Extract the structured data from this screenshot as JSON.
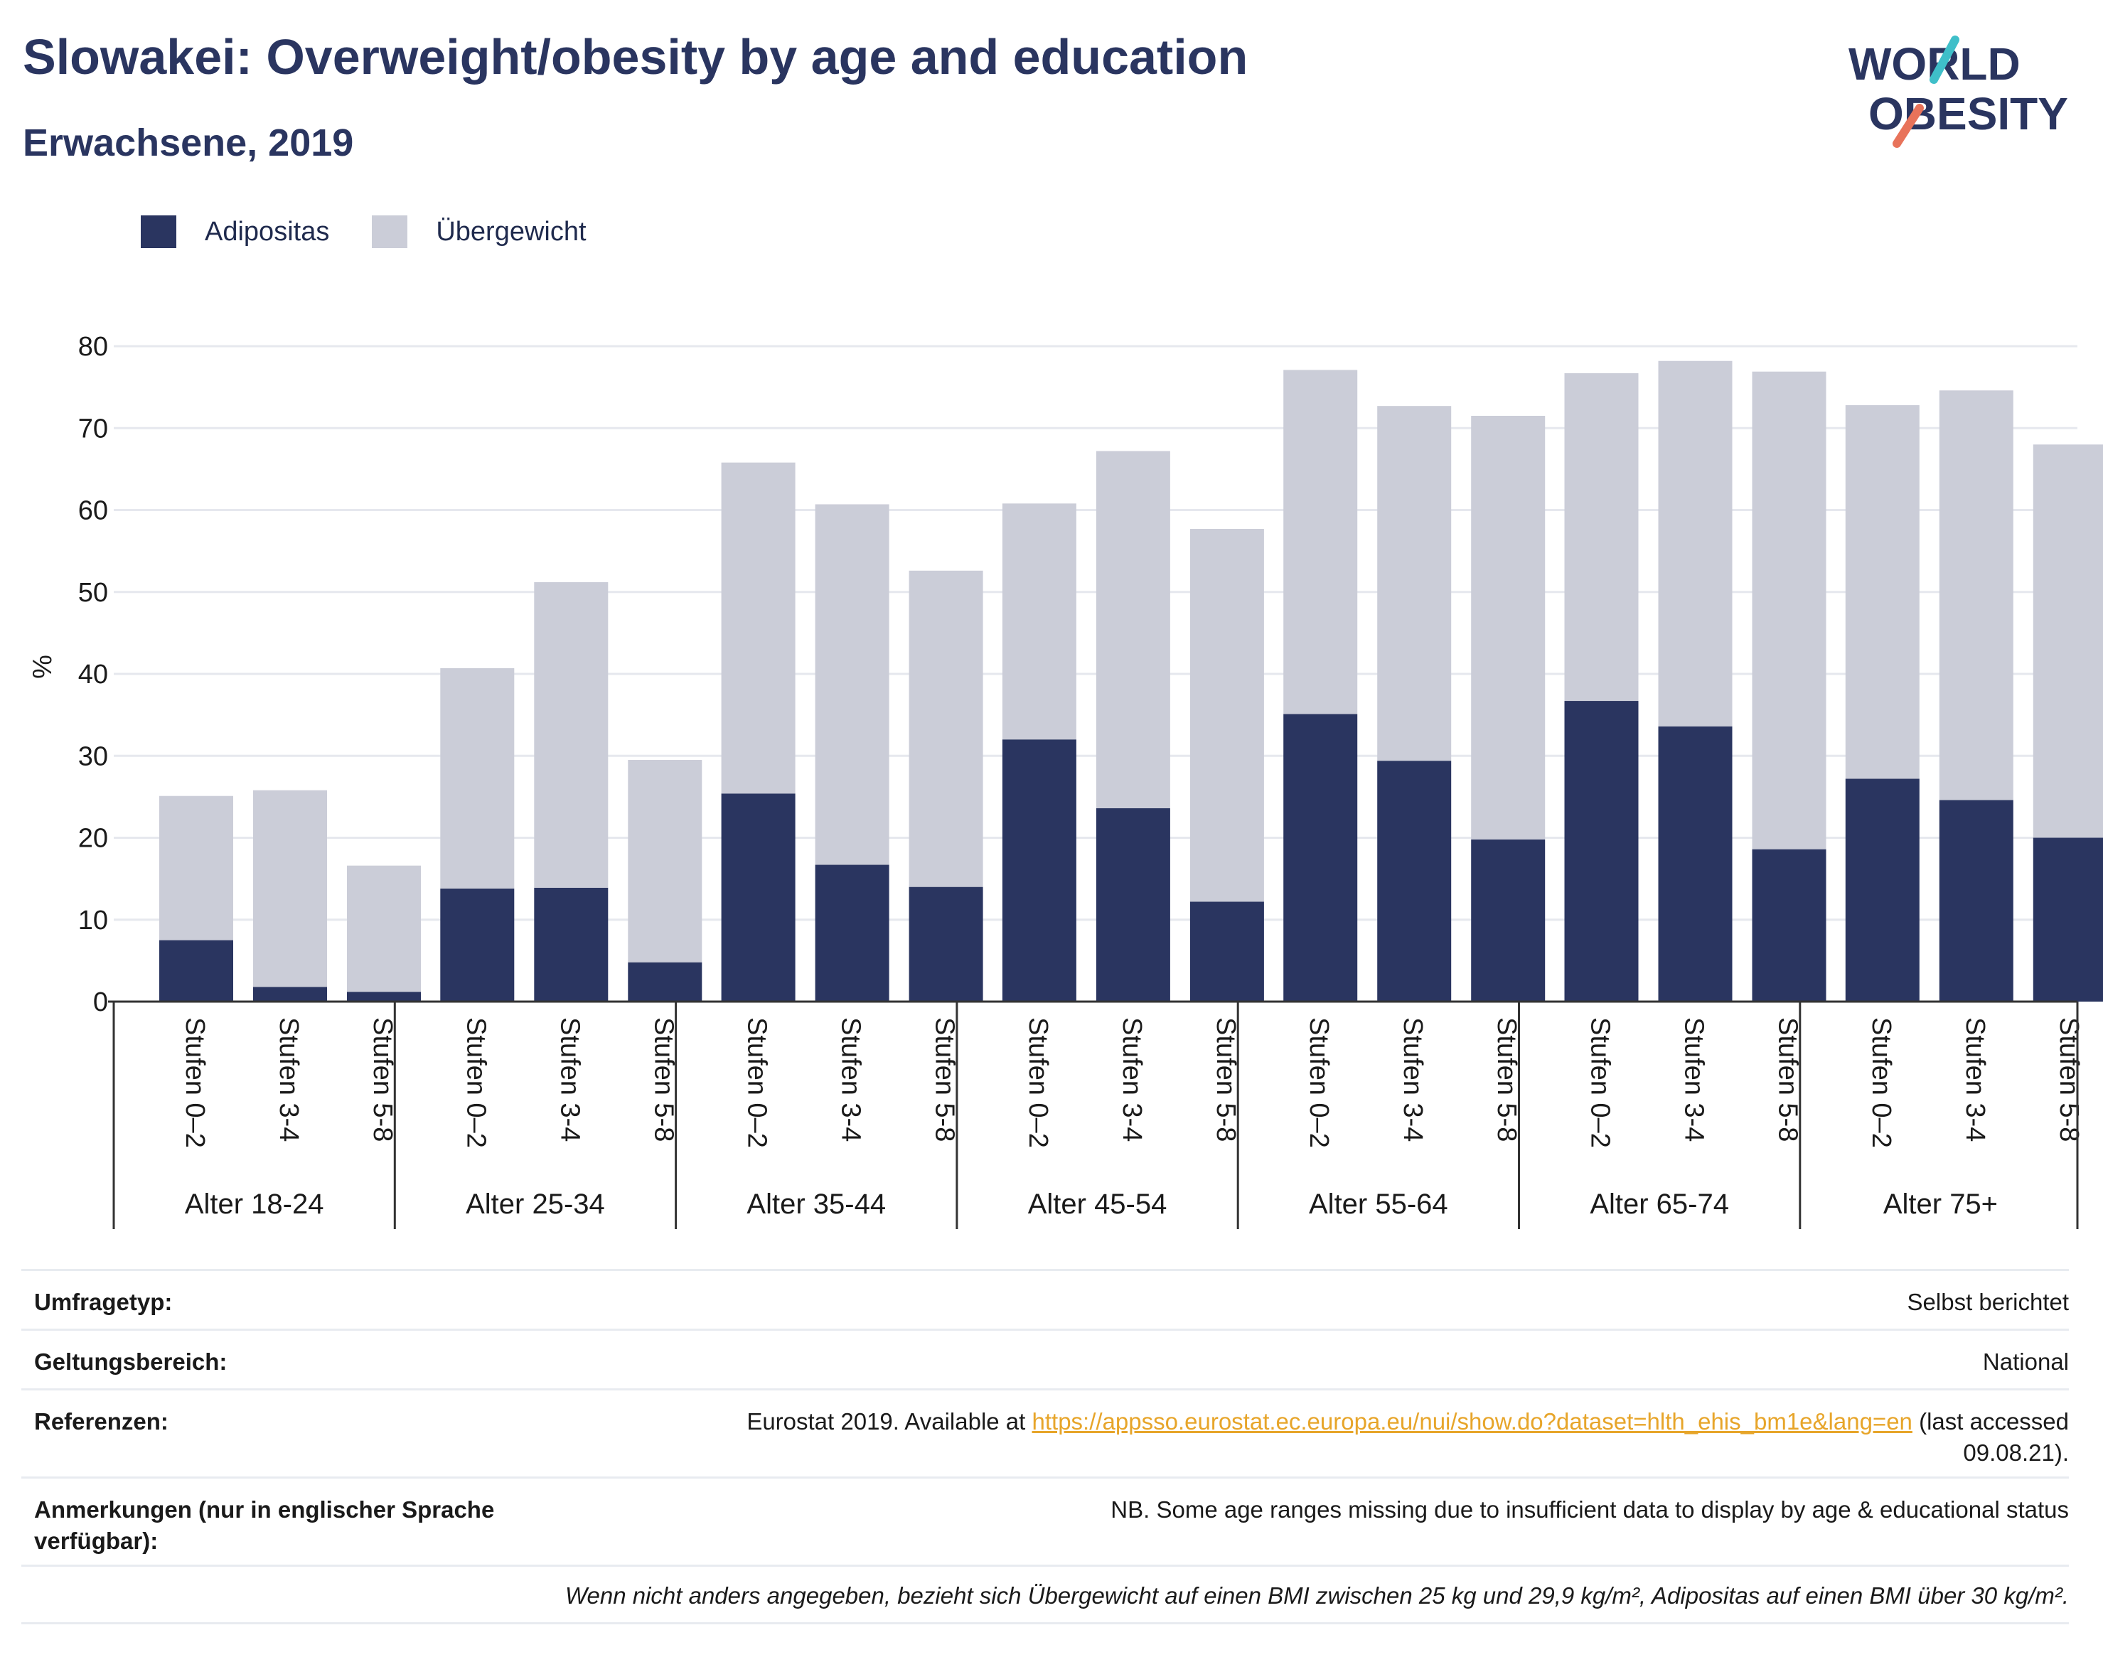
{
  "header": {
    "title": "Slowakei: Overweight/obesity by age and education",
    "subtitle": "Erwachsene, 2019"
  },
  "logo": {
    "line1": "WORLD",
    "line2": "OBESITY",
    "colors": {
      "navy": "#2a3560",
      "teal": "#3fbfc9",
      "coral": "#e8735a"
    }
  },
  "legend": [
    {
      "label": "Adipositas",
      "color": "#2a3560"
    },
    {
      "label": "Übergewicht",
      "color": "#cbcdd8"
    }
  ],
  "chart_data": {
    "type": "bar",
    "stacked": true,
    "ylabel": "%",
    "ylim": [
      0,
      80
    ],
    "yticks": [
      0,
      10,
      20,
      30,
      40,
      50,
      60,
      70,
      80
    ],
    "grid": true,
    "legend_position": "top-left",
    "groups": [
      "Alter 18-24",
      "Alter 25-34",
      "Alter 35-44",
      "Alter 45-54",
      "Alter 55-64",
      "Alter 65-74",
      "Alter 75+"
    ],
    "subcategories": [
      "Stufen 0–2",
      "Stufen 3-4",
      "Stufen 5-8"
    ],
    "series": [
      {
        "name": "Adipositas",
        "color": "#2a3560",
        "values": [
          [
            7.5,
            1.8,
            1.2
          ],
          [
            13.8,
            13.9,
            4.8
          ],
          [
            25.4,
            16.7,
            14.0
          ],
          [
            32.0,
            23.6,
            12.2
          ],
          [
            35.1,
            29.4,
            19.8
          ],
          [
            36.7,
            33.6,
            18.6
          ],
          [
            27.2,
            24.6,
            20.0
          ]
        ]
      },
      {
        "name": "Übergewicht",
        "color": "#cbcdd8",
        "values": [
          [
            17.6,
            24.0,
            15.4
          ],
          [
            26.9,
            37.3,
            24.7
          ],
          [
            40.4,
            44.0,
            38.6
          ],
          [
            28.8,
            43.6,
            45.5
          ],
          [
            42.0,
            43.3,
            51.7
          ],
          [
            40.0,
            44.6,
            58.3
          ],
          [
            45.6,
            50.0,
            48.0
          ]
        ]
      }
    ],
    "totals": [
      [
        25.1,
        25.8,
        16.6
      ],
      [
        40.7,
        51.2,
        29.5
      ],
      [
        65.8,
        60.7,
        52.6
      ],
      [
        60.8,
        67.2,
        57.7
      ],
      [
        77.1,
        72.7,
        71.5
      ],
      [
        76.7,
        78.2,
        76.9
      ],
      [
        72.8,
        74.6,
        68.0
      ]
    ]
  },
  "meta": {
    "rows": [
      {
        "key": "Umfragetyp:",
        "value": "Selbst berichtet"
      },
      {
        "key": "Geltungsbereich:",
        "value": "National"
      },
      {
        "key": "Referenzen:",
        "value_prefix": "Eurostat 2019. Available at ",
        "link": "https://appsso.eurostat.ec.europa.eu/nui/show.do?dataset=hlth_ehis_bm1e&lang=en",
        "value_suffix": " (last accessed",
        "value_line2": "09.08.21)."
      },
      {
        "key": "Anmerkungen (nur in englischer Sprache verfügbar):",
        "value": "NB. Some age ranges missing due to insufficient data to display by age & educational status"
      }
    ],
    "footnote": "Wenn nicht anders angegeben, bezieht sich Übergewicht auf einen BMI zwischen 25 kg und 29,9 kg/m², Adipositas auf einen BMI über 30 kg/m²."
  }
}
